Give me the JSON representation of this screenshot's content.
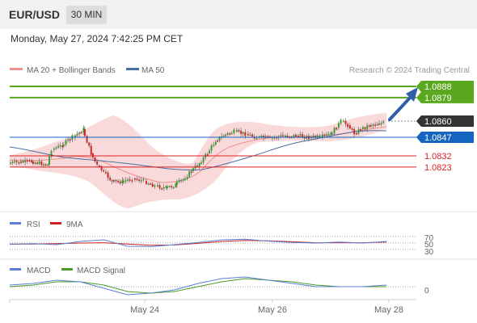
{
  "header": {
    "pair": "EUR/USD",
    "timeframe": "30 MIN",
    "datetime": "Monday, May 27, 2024 7:42:25 PM CET"
  },
  "main_legend": {
    "ma20_label": "MA 20 + Bollinger Bands",
    "ma50_label": "MA 50",
    "credit": "Research © 2024 Trading Central"
  },
  "rsi_legend": {
    "rsi_label": "RSI",
    "ma_label": "9MA"
  },
  "macd_legend": {
    "macd_label": "MACD",
    "signal_label": "MACD Signal"
  },
  "colors": {
    "green": "#5aa81e",
    "blue": "#1565c0",
    "red": "#dd2222",
    "black_tag": "#333333",
    "candle_up": "#2e9e2e",
    "candle_down": "#cc2222",
    "band_fill": "#f7c9c9",
    "ma20": "#f19090",
    "ma50": "#4a6fa5",
    "rsi": "#5b7fd6",
    "rsi_ma": "#cc2222",
    "macd": "#5b7fd6",
    "macd_signal": "#4a9a2a"
  },
  "price_levels": [
    {
      "value": 1.0888,
      "label": "1.0888",
      "kind": "resistance-tag"
    },
    {
      "value": 1.0879,
      "label": "1.0879",
      "kind": "resistance-tag"
    },
    {
      "value": 1.086,
      "label": "1.0860",
      "kind": "current-tag"
    },
    {
      "value": 1.0847,
      "label": "1.0847",
      "kind": "pivot-tag"
    },
    {
      "value": 1.0832,
      "label": "1.0832",
      "kind": "support-text"
    },
    {
      "value": 1.0823,
      "label": "1.0823",
      "kind": "support-text"
    }
  ],
  "chart_data": [
    {
      "type": "candlestick",
      "xlabels": [
        "May 24",
        "May 26",
        "May 28"
      ],
      "ylim": [
        1.0788,
        1.09
      ],
      "grid": false,
      "legend": "top-left",
      "series": [
        {
          "name": "MA 20 + Bollinger Bands",
          "values": [
            1.0843,
            1.084,
            1.0836,
            1.0829,
            1.0819,
            1.081,
            1.0803,
            1.0807,
            1.0827,
            1.0846,
            1.0852,
            1.085,
            1.0848,
            1.0847,
            1.0849,
            1.0852
          ]
        },
        {
          "name": "MA 50",
          "values": [
            1.084,
            1.0837,
            1.0834,
            1.0832,
            1.0828,
            1.0824,
            1.0822,
            1.0822,
            1.0826,
            1.0832,
            1.0837,
            1.0842,
            1.0845,
            1.0848,
            1.0851,
            1.0853
          ]
        }
      ]
    },
    {
      "type": "line",
      "title": "RSI",
      "yticks": [
        70,
        50,
        30
      ],
      "ylim": [
        20,
        80
      ],
      "series": [
        {
          "name": "RSI",
          "values": [
            46,
            48,
            45,
            55,
            60,
            40,
            39,
            45,
            52,
            60,
            62,
            56,
            52,
            50,
            53,
            50,
            55
          ]
        },
        {
          "name": "9MA",
          "values": [
            47,
            47,
            48,
            50,
            51,
            47,
            43,
            44,
            49,
            55,
            58,
            57,
            54,
            51,
            51,
            51,
            53
          ]
        }
      ]
    },
    {
      "type": "line",
      "title": "MACD",
      "yticks": [
        0
      ],
      "ylim": [
        -0.0008,
        0.0008
      ],
      "series": [
        {
          "name": "MACD",
          "values": [
            0.0001,
            0.0002,
            0.0004,
            0.0003,
            -0.0001,
            -0.0005,
            -0.0004,
            -0.0002,
            0.0002,
            0.0005,
            0.0006,
            0.0004,
            0.0002,
            0.0,
            0.0,
            0.0,
            0.0001
          ]
        },
        {
          "name": "MACD Signal",
          "values": [
            0.0,
            0.0001,
            0.0003,
            0.0003,
            0.0001,
            -0.0003,
            -0.0004,
            -0.0003,
            0.0,
            0.0003,
            0.0005,
            0.0004,
            0.0003,
            0.0001,
            0.0,
            0.0,
            0.0
          ]
        }
      ]
    }
  ]
}
